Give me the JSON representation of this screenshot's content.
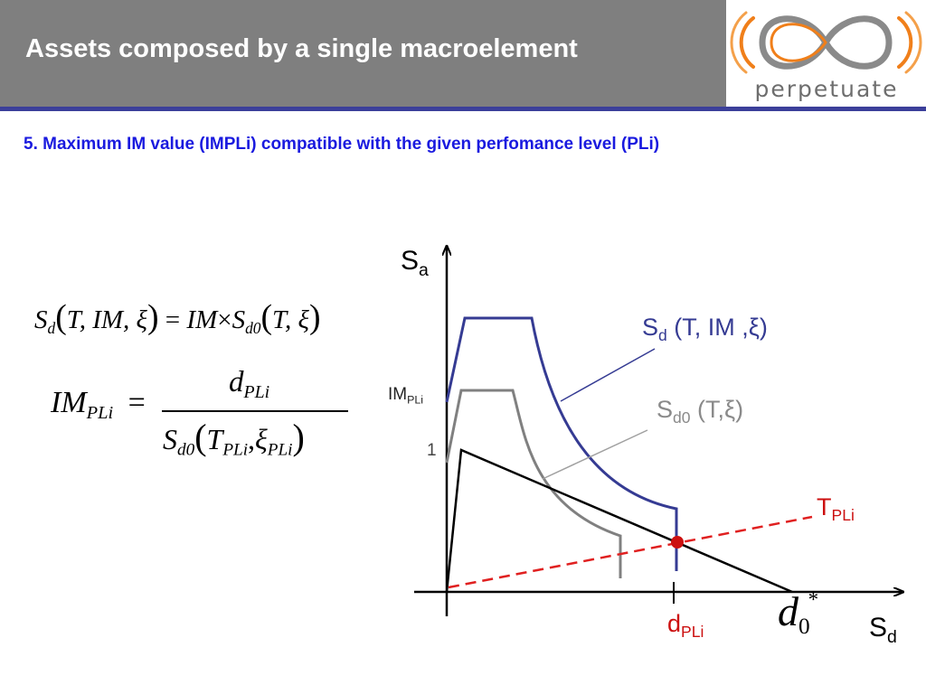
{
  "header": {
    "title": "Assets composed by a single macroelement",
    "logo_text": "perpetuate"
  },
  "subtitle": "5. Maximum IM value (IMPLi) compatible with the given perfomance level (PLi)",
  "formulas": {
    "sd": {
      "lhs": "S",
      "lhs_sub": "d",
      "lhs_args": "T, IM, ξ",
      "rhs_im": "IM",
      "times": "×",
      "rhs_s": "S",
      "rhs_sub": "d0",
      "rhs_args": "T, ξ"
    },
    "im": {
      "lhs": "IM",
      "lhs_sub": "PLi",
      "eq": "=",
      "num": "d",
      "num_sub": "PLi",
      "den_s": "S",
      "den_sub": "d0",
      "den_t": "T",
      "den_t_sub": "PLi",
      "den_xi": "ξ",
      "den_xi_sub": "PLi"
    }
  },
  "diagram": {
    "y_axis": {
      "label": "S",
      "sub": "a"
    },
    "x_axis": {
      "label": "S",
      "sub": "d"
    },
    "im_label": {
      "text": "IM",
      "sub": "PLi"
    },
    "one_label": "1",
    "curve_im": {
      "text": "S",
      "sub": "d",
      "args": " (T, IM ,ξ)"
    },
    "curve_d0": {
      "text": "S",
      "sub": "d0",
      "args": " (T,ξ)"
    },
    "t_label": {
      "text": "T",
      "sub": "PLi"
    },
    "d_label": {
      "text": "d",
      "sub": "PLi"
    },
    "dstar": {
      "text": "d",
      "sub": "0",
      "sup": "*"
    }
  },
  "colors": {
    "header_bg": "#7f7f7f",
    "rule": "#3b3f9a",
    "subtitle": "#1a1adf",
    "curve_im": "#353b93",
    "curve_d0": "#808080",
    "capacity": "#000000",
    "period_line": "#e02020",
    "intersection_point": "#cc1010",
    "logo_orange": "#f07f1a",
    "logo_grey": "#8a8a8a"
  }
}
